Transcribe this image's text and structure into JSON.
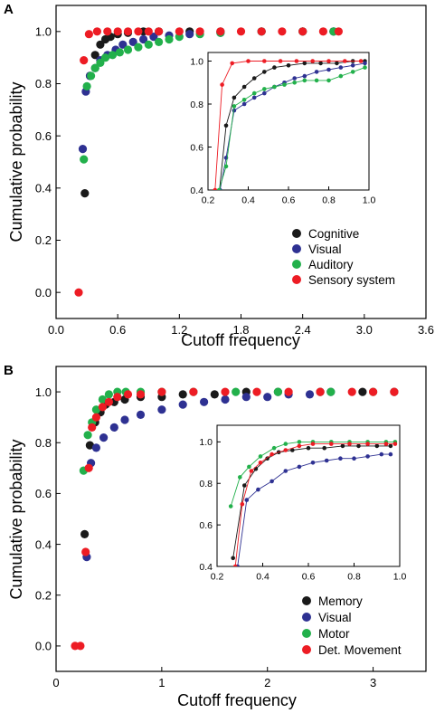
{
  "colors": {
    "black": "#1a1a1a",
    "blue": "#2e3192",
    "green": "#22b04b",
    "red": "#ed1c24"
  },
  "chart_data": [
    {
      "type": "scatter",
      "panel": "A",
      "xlabel": "Cutoff frequency",
      "ylabel": "Cumulative probability",
      "xlim": [
        0,
        3.6
      ],
      "ylim": [
        -0.1,
        1.1
      ],
      "xticks": [
        "0.0",
        "0.6",
        "1.2",
        "1.8",
        "2.4",
        "3.0",
        "3.6"
      ],
      "yticks": [
        "0.0",
        "0.2",
        "0.4",
        "0.6",
        "0.8",
        "1.0"
      ],
      "legend_position": "bottom-right",
      "series": [
        {
          "name": "Cognitive",
          "color": "#1a1a1a",
          "x": [
            0.28,
            0.33,
            0.38,
            0.43,
            0.48,
            0.53,
            0.6,
            0.7,
            0.85,
            1.0,
            1.3,
            1.6,
            2.0,
            2.4,
            2.7
          ],
          "y": [
            0.38,
            0.83,
            0.91,
            0.95,
            0.97,
            0.98,
            0.99,
            0.995,
            1.0,
            1.0,
            1.0,
            1.0,
            1.0,
            1.0,
            1.0
          ]
        },
        {
          "name": "Visual",
          "color": "#2e3192",
          "x": [
            0.26,
            0.29,
            0.33,
            0.38,
            0.43,
            0.5,
            0.58,
            0.65,
            0.75,
            0.85,
            0.95,
            1.1,
            1.3,
            1.6,
            2.0,
            2.4,
            2.7
          ],
          "y": [
            0.55,
            0.77,
            0.83,
            0.86,
            0.89,
            0.91,
            0.93,
            0.95,
            0.96,
            0.97,
            0.98,
            0.985,
            0.99,
            0.995,
            1.0,
            1.0,
            1.0
          ]
        },
        {
          "name": "Auditory",
          "color": "#22b04b",
          "x": [
            0.27,
            0.3,
            0.34,
            0.38,
            0.43,
            0.48,
            0.55,
            0.62,
            0.7,
            0.8,
            0.9,
            1.0,
            1.1,
            1.2,
            1.4,
            1.6,
            2.0,
            2.4,
            2.7
          ],
          "y": [
            0.51,
            0.79,
            0.83,
            0.86,
            0.88,
            0.9,
            0.91,
            0.92,
            0.93,
            0.94,
            0.95,
            0.96,
            0.97,
            0.98,
            0.99,
            0.995,
            1.0,
            1.0,
            1.0
          ]
        },
        {
          "name": "Sensory system",
          "color": "#ed1c24",
          "x": [
            0.22,
            0.27,
            0.32,
            0.4,
            0.5,
            0.6,
            0.7,
            0.8,
            0.9,
            1.0,
            1.2,
            1.4,
            1.6,
            1.8,
            2.0,
            2.2,
            2.4,
            2.6,
            2.75
          ],
          "y": [
            0.0,
            0.89,
            0.99,
            1.0,
            1.0,
            1.0,
            1.0,
            1.0,
            1.0,
            1.0,
            1.0,
            1.0,
            1.0,
            1.0,
            1.0,
            1.0,
            1.0,
            1.0,
            1.0
          ]
        }
      ],
      "inset": {
        "xlim": [
          0.2,
          1.0
        ],
        "ylim": [
          0.4,
          1.04
        ],
        "xticks": [
          "0.2",
          "0.4",
          "0.6",
          "0.8",
          "1.0"
        ],
        "yticks": [
          "0.4",
          "0.6",
          "0.8",
          "1.0"
        ],
        "series": [
          {
            "name": "Cognitive",
            "color": "#1a1a1a",
            "x": [
              0.255,
              0.29,
              0.33,
              0.38,
              0.43,
              0.48,
              0.53,
              0.6,
              0.68,
              0.76,
              0.84,
              0.92,
              0.98
            ],
            "y": [
              0.38,
              0.7,
              0.83,
              0.88,
              0.92,
              0.95,
              0.97,
              0.98,
              0.99,
              0.99,
              0.99,
              1.0,
              1.0
            ]
          },
          {
            "name": "Visual",
            "color": "#2e3192",
            "x": [
              0.26,
              0.29,
              0.33,
              0.38,
              0.43,
              0.48,
              0.53,
              0.58,
              0.63,
              0.68,
              0.74,
              0.8,
              0.86,
              0.92,
              0.98
            ],
            "y": [
              0.4,
              0.55,
              0.77,
              0.8,
              0.83,
              0.85,
              0.88,
              0.9,
              0.92,
              0.93,
              0.95,
              0.96,
              0.97,
              0.98,
              0.99
            ]
          },
          {
            "name": "Auditory",
            "color": "#22b04b",
            "x": [
              0.255,
              0.29,
              0.33,
              0.38,
              0.43,
              0.48,
              0.53,
              0.58,
              0.63,
              0.68,
              0.74,
              0.8,
              0.86,
              0.92,
              0.98
            ],
            "y": [
              0.4,
              0.51,
              0.79,
              0.82,
              0.85,
              0.87,
              0.88,
              0.89,
              0.9,
              0.91,
              0.91,
              0.91,
              0.93,
              0.95,
              0.97
            ]
          },
          {
            "name": "Sensory system",
            "color": "#ed1c24",
            "x": [
              0.235,
              0.27,
              0.32,
              0.4,
              0.48,
              0.56,
              0.64,
              0.72,
              0.8,
              0.88,
              0.96
            ],
            "y": [
              0.4,
              0.89,
              0.99,
              1.0,
              1.0,
              1.0,
              1.0,
              1.0,
              1.0,
              1.0,
              1.0
            ]
          }
        ]
      }
    },
    {
      "type": "scatter",
      "panel": "B",
      "xlabel": "Cutoff frequency",
      "ylabel": "Cumulative probability",
      "xlim": [
        0,
        3.5
      ],
      "ylim": [
        -0.1,
        1.1
      ],
      "xticks": [
        "0",
        "1",
        "2",
        "3"
      ],
      "yticks": [
        "0.0",
        "0.2",
        "0.4",
        "0.6",
        "0.8",
        "1.0"
      ],
      "legend_position": "bottom-right",
      "series": [
        {
          "name": "Memory",
          "color": "#1a1a1a",
          "x": [
            0.27,
            0.32,
            0.37,
            0.42,
            0.47,
            0.55,
            0.65,
            0.8,
            1.0,
            1.2,
            1.5,
            1.8,
            2.1,
            2.5,
            2.9,
            3.2
          ],
          "y": [
            0.44,
            0.79,
            0.88,
            0.92,
            0.95,
            0.96,
            0.97,
            0.98,
            0.98,
            0.99,
            0.99,
            1.0,
            1.0,
            1.0,
            1.0,
            1.0
          ]
        },
        {
          "name": "Visual",
          "color": "#2e3192",
          "x": [
            0.29,
            0.33,
            0.38,
            0.45,
            0.55,
            0.65,
            0.8,
            1.0,
            1.2,
            1.4,
            1.6,
            1.8,
            2.0,
            2.2,
            2.4,
            2.6
          ],
          "y": [
            0.35,
            0.72,
            0.78,
            0.82,
            0.86,
            0.89,
            0.91,
            0.93,
            0.95,
            0.96,
            0.97,
            0.98,
            0.98,
            0.99,
            0.99,
            1.0
          ]
        },
        {
          "name": "Motor",
          "color": "#22b04b",
          "x": [
            0.26,
            0.3,
            0.34,
            0.38,
            0.44,
            0.5,
            0.58,
            0.66,
            0.8,
            1.0,
            1.3,
            1.7,
            2.1,
            2.6,
            3.0
          ],
          "y": [
            0.69,
            0.83,
            0.88,
            0.93,
            0.97,
            0.99,
            1.0,
            1.0,
            1.0,
            1.0,
            1.0,
            1.0,
            1.0,
            1.0,
            1.0
          ]
        },
        {
          "name": "Det. Movement",
          "color": "#ed1c24",
          "x": [
            0.18,
            0.23,
            0.28,
            0.31,
            0.34,
            0.38,
            0.44,
            0.5,
            0.58,
            0.68,
            0.8,
            1.0,
            1.3,
            1.6,
            1.9,
            2.2,
            2.5,
            2.8,
            3.0,
            3.2
          ],
          "y": [
            0.0,
            0.0,
            0.37,
            0.7,
            0.86,
            0.9,
            0.94,
            0.96,
            0.98,
            0.99,
            0.99,
            1.0,
            1.0,
            1.0,
            1.0,
            1.0,
            1.0,
            1.0,
            1.0,
            1.0
          ]
        }
      ],
      "inset": {
        "xlim": [
          0.2,
          1.0
        ],
        "ylim": [
          0.4,
          1.08
        ],
        "xticks": [
          "0.2",
          "0.4",
          "0.6",
          "0.8",
          "1.0"
        ],
        "yticks": [
          "0.4",
          "0.6",
          "0.8",
          "1.0"
        ],
        "series": [
          {
            "name": "Memory",
            "color": "#1a1a1a",
            "x": [
              0.27,
              0.32,
              0.37,
              0.42,
              0.47,
              0.53,
              0.6,
              0.67,
              0.75,
              0.82,
              0.9,
              0.96
            ],
            "y": [
              0.44,
              0.79,
              0.87,
              0.92,
              0.95,
              0.96,
              0.97,
              0.97,
              0.98,
              0.98,
              0.98,
              0.98
            ]
          },
          {
            "name": "Visual",
            "color": "#2e3192",
            "x": [
              0.29,
              0.33,
              0.38,
              0.44,
              0.5,
              0.56,
              0.62,
              0.68,
              0.74,
              0.8,
              0.86,
              0.92,
              0.96
            ],
            "y": [
              0.4,
              0.72,
              0.77,
              0.81,
              0.86,
              0.88,
              0.9,
              0.91,
              0.92,
              0.92,
              0.93,
              0.94,
              0.94
            ]
          },
          {
            "name": "Motor",
            "color": "#22b04b",
            "x": [
              0.26,
              0.3,
              0.34,
              0.39,
              0.45,
              0.5,
              0.56,
              0.62,
              0.7,
              0.78,
              0.86,
              0.94,
              0.98
            ],
            "y": [
              0.69,
              0.83,
              0.88,
              0.93,
              0.97,
              0.99,
              1.0,
              1.0,
              1.0,
              1.0,
              1.0,
              1.0,
              1.0
            ]
          },
          {
            "name": "Det. Movement",
            "color": "#ed1c24",
            "x": [
              0.28,
              0.31,
              0.35,
              0.39,
              0.44,
              0.5,
              0.56,
              0.62,
              0.7,
              0.78,
              0.86,
              0.94,
              0.98
            ],
            "y": [
              0.4,
              0.7,
              0.86,
              0.9,
              0.94,
              0.96,
              0.98,
              0.99,
              0.99,
              0.99,
              0.99,
              0.99,
              0.99
            ]
          }
        ]
      }
    }
  ]
}
